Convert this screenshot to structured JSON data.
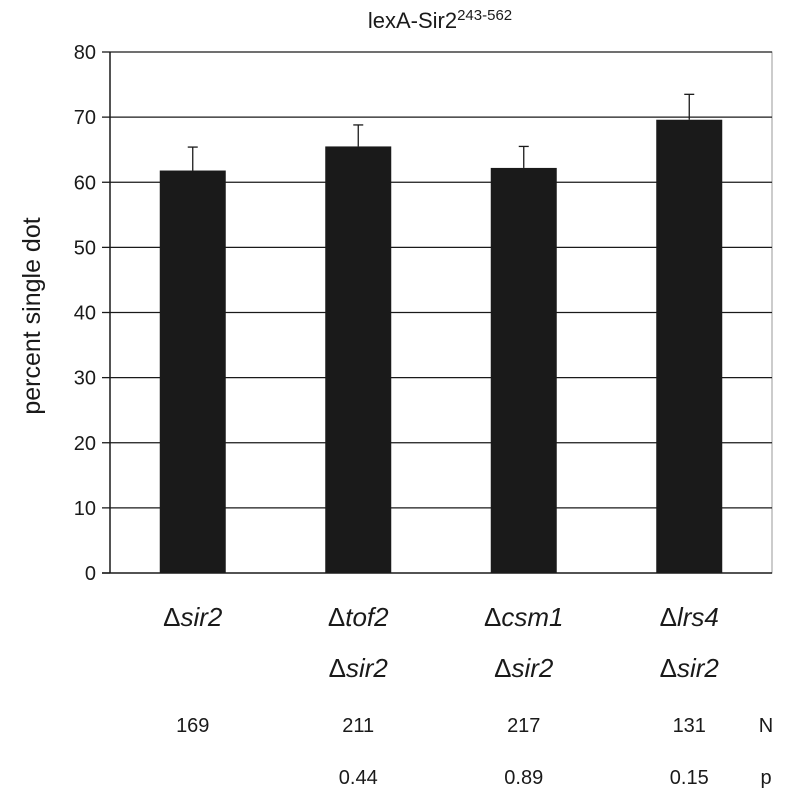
{
  "chart_data": {
    "type": "bar",
    "title": {
      "main": "lexA-Sir2",
      "superscript": "243-562"
    },
    "ylabel": "percent single dot",
    "xlabel": "",
    "ylim": [
      0,
      80
    ],
    "yticks": [
      0,
      10,
      20,
      30,
      40,
      50,
      60,
      70,
      80
    ],
    "grid": true,
    "categories": [
      {
        "line1": [
          "Δ",
          "sir2"
        ],
        "line2": null
      },
      {
        "line1": [
          "Δ",
          "tof2"
        ],
        "line2": [
          "Δ",
          "sir2"
        ]
      },
      {
        "line1": [
          "Δ",
          "csm1"
        ],
        "line2": [
          "Δ",
          "sir2"
        ]
      },
      {
        "line1": [
          "Δ",
          "lrs4"
        ],
        "line2": [
          "Δ",
          "sir2"
        ]
      }
    ],
    "values": [
      61.8,
      65.5,
      62.2,
      69.6
    ],
    "error_upper": [
      3.6,
      3.3,
      3.3,
      3.9
    ],
    "bar_color": "#1a1a1a",
    "rows": [
      {
        "label": "N",
        "values": [
          "169",
          "211",
          "217",
          "131"
        ]
      },
      {
        "label": "p",
        "values": [
          "",
          "0.44",
          "0.89",
          "0.15"
        ]
      }
    ]
  }
}
